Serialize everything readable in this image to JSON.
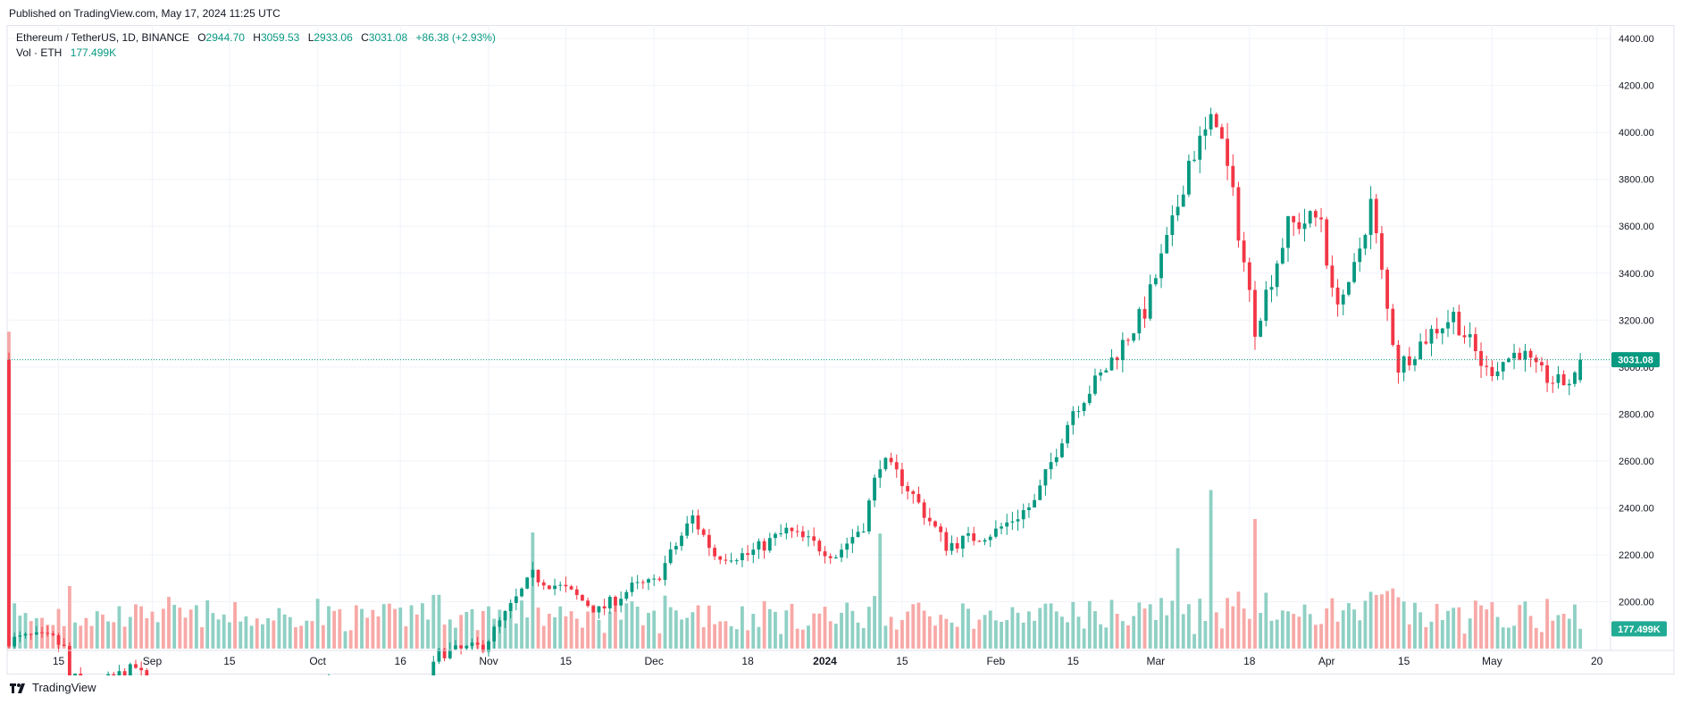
{
  "header": {
    "published": "Published on TradingView.com, May 17, 2024 11:25 UTC"
  },
  "legend": {
    "symbol": "Ethereum / TetherUS, 1D, BINANCE",
    "open_label": "O",
    "open": "2944.70",
    "high_label": "H",
    "high": "3059.53",
    "low_label": "L",
    "low": "2933.06",
    "close_label": "C",
    "close": "3031.08",
    "change": "+86.38 (+2.93%)",
    "vol_label": "Vol · ETH",
    "vol": "177.499K"
  },
  "price_axis": {
    "ticks": [
      "2000.00",
      "2200.00",
      "2400.00",
      "2600.00",
      "2800.00",
      "3000.00",
      "3200.00",
      "3400.00",
      "3600.00",
      "3800.00",
      "4000.00",
      "4200.00",
      "4400.00"
    ],
    "tick_values": [
      2000,
      2200,
      2400,
      2600,
      2800,
      3000,
      3200,
      3400,
      3600,
      3800,
      4000,
      4200,
      4400
    ],
    "last_price_label": "3031.08",
    "last_volume_label": "177.499K"
  },
  "time_axis": {
    "labels": [
      {
        "text": "15",
        "date": "2023-08-15"
      },
      {
        "text": "Sep",
        "date": "2023-09-01"
      },
      {
        "text": "15",
        "date": "2023-09-15"
      },
      {
        "text": "Oct",
        "date": "2023-10-01"
      },
      {
        "text": "16",
        "date": "2023-10-16"
      },
      {
        "text": "Nov",
        "date": "2023-11-01"
      },
      {
        "text": "15",
        "date": "2023-11-15"
      },
      {
        "text": "Dec",
        "date": "2023-12-01"
      },
      {
        "text": "18",
        "date": "2023-12-18"
      },
      {
        "text": "2024",
        "date": "2024-01-01"
      },
      {
        "text": "15",
        "date": "2024-01-15"
      },
      {
        "text": "Feb",
        "date": "2024-02-01"
      },
      {
        "text": "15",
        "date": "2024-02-15"
      },
      {
        "text": "Mar",
        "date": "2024-03-01"
      },
      {
        "text": "18",
        "date": "2024-03-18"
      },
      {
        "text": "Apr",
        "date": "2024-04-01"
      },
      {
        "text": "15",
        "date": "2024-04-15"
      },
      {
        "text": "May",
        "date": "2024-05-01"
      },
      {
        "text": "20",
        "date": "2024-05-20"
      }
    ]
  },
  "footer": {
    "brand": "TradingView"
  },
  "colors": {
    "up": "#089981",
    "down": "#F23645",
    "volume_up": "#8fd0c4",
    "volume_down": "#f7a9a7",
    "grid": "#f0f3fa",
    "axis_text": "#131722"
  },
  "chart_data": {
    "type": "candlestick",
    "x_start": "2023-08-06",
    "x_end": "2024-05-22",
    "ylim": [
      1800,
      4450
    ],
    "grid": true,
    "closes": [
      {
        "date": "2023-08-06",
        "close": 1835
      },
      {
        "date": "2023-08-10",
        "close": 1850
      },
      {
        "date": "2023-08-14",
        "close": 1840
      },
      {
        "date": "2023-08-16",
        "close": 1800
      },
      {
        "date": "2023-08-17",
        "close": 1680
      },
      {
        "date": "2023-08-22",
        "close": 1650
      },
      {
        "date": "2023-08-29",
        "close": 1720
      },
      {
        "date": "2023-09-01",
        "close": 1630
      },
      {
        "date": "2023-09-11",
        "close": 1550
      },
      {
        "date": "2023-09-20",
        "close": 1630
      },
      {
        "date": "2023-09-28",
        "close": 1600
      },
      {
        "date": "2023-10-02",
        "close": 1660
      },
      {
        "date": "2023-10-12",
        "close": 1550
      },
      {
        "date": "2023-10-19",
        "close": 1560
      },
      {
        "date": "2023-10-23",
        "close": 1780
      },
      {
        "date": "2023-10-31",
        "close": 1810
      },
      {
        "date": "2023-11-09",
        "close": 2110
      },
      {
        "date": "2023-11-15",
        "close": 2050
      },
      {
        "date": "2023-11-21",
        "close": 1960
      },
      {
        "date": "2023-11-27",
        "close": 2060
      },
      {
        "date": "2023-12-01",
        "close": 2080
      },
      {
        "date": "2023-12-08",
        "close": 2360
      },
      {
        "date": "2023-12-12",
        "close": 2200
      },
      {
        "date": "2023-12-18",
        "close": 2200
      },
      {
        "date": "2023-12-25",
        "close": 2300
      },
      {
        "date": "2024-01-03",
        "close": 2200
      },
      {
        "date": "2024-01-08",
        "close": 2330
      },
      {
        "date": "2024-01-11",
        "close": 2600
      },
      {
        "date": "2024-01-15",
        "close": 2520
      },
      {
        "date": "2024-01-23",
        "close": 2240
      },
      {
        "date": "2024-02-01",
        "close": 2300
      },
      {
        "date": "2024-02-08",
        "close": 2420
      },
      {
        "date": "2024-02-15",
        "close": 2820
      },
      {
        "date": "2024-02-20",
        "close": 2960
      },
      {
        "date": "2024-02-28",
        "close": 3240
      },
      {
        "date": "2024-03-04",
        "close": 3600
      },
      {
        "date": "2024-03-07",
        "close": 3880
      },
      {
        "date": "2024-03-12",
        "close": 4070
      },
      {
        "date": "2024-03-15",
        "close": 3720
      },
      {
        "date": "2024-03-19",
        "close": 3170
      },
      {
        "date": "2024-03-25",
        "close": 3600
      },
      {
        "date": "2024-03-31",
        "close": 3640
      },
      {
        "date": "2024-04-02",
        "close": 3300
      },
      {
        "date": "2024-04-05",
        "close": 3320
      },
      {
        "date": "2024-04-09",
        "close": 3700
      },
      {
        "date": "2024-04-12",
        "close": 3240
      },
      {
        "date": "2024-04-14",
        "close": 3000
      },
      {
        "date": "2024-04-20",
        "close": 3150
      },
      {
        "date": "2024-04-24",
        "close": 3220
      },
      {
        "date": "2024-04-30",
        "close": 2980
      },
      {
        "date": "2024-05-06",
        "close": 3070
      },
      {
        "date": "2024-05-09",
        "close": 2980
      },
      {
        "date": "2024-05-13",
        "close": 2930
      },
      {
        "date": "2024-05-16",
        "close": 2945
      },
      {
        "date": "2024-05-17",
        "close": 3031.08
      }
    ],
    "volume_scale_max": 2400,
    "volume_bars": [
      {
        "date": "2024-03-11",
        "volume": 1420
      },
      {
        "date": "2024-03-05",
        "volume": 900
      },
      {
        "date": "2024-03-19",
        "volume": 1160
      },
      {
        "date": "2024-01-11",
        "volume": 1030
      },
      {
        "date": "2023-11-09",
        "volume": 1040
      },
      {
        "date": "2023-08-17",
        "volume": 560
      }
    ]
  }
}
